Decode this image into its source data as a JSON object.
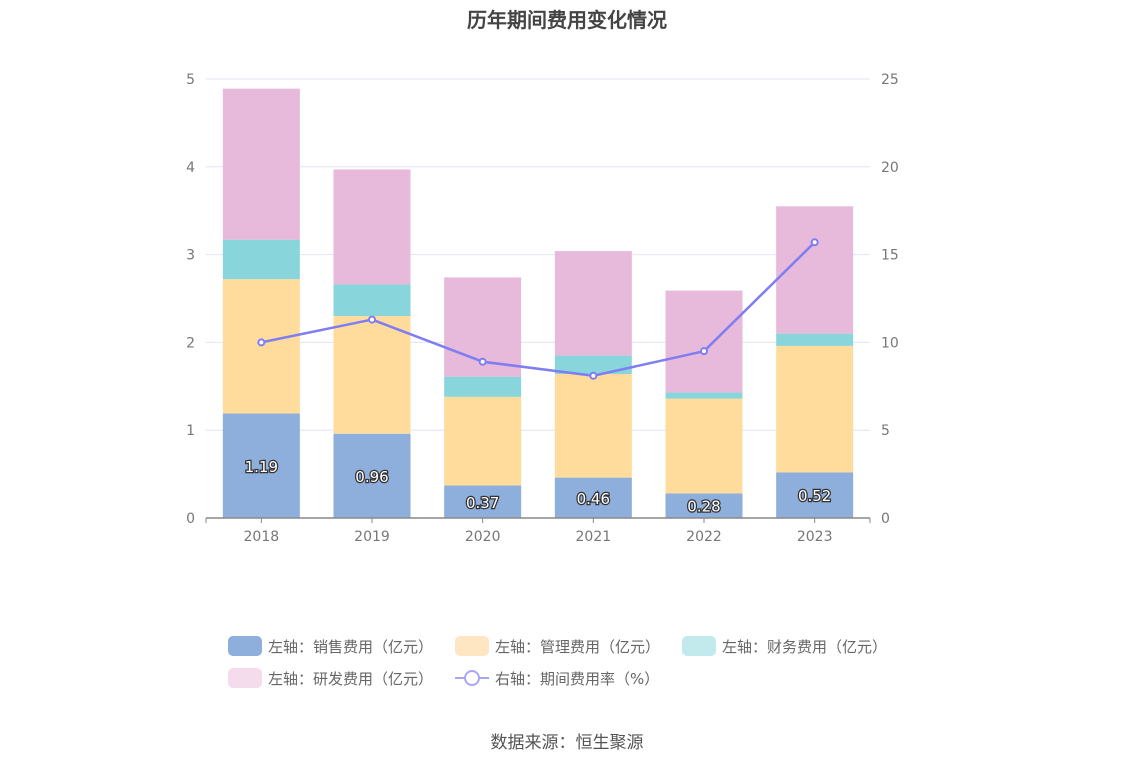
{
  "chart_data": {
    "type": "bar",
    "title": "历年期间费用变化情况",
    "categories": [
      "2018",
      "2019",
      "2020",
      "2021",
      "2022",
      "2023"
    ],
    "stacked": true,
    "series": [
      {
        "name": "左轴：销售费用（亿元）",
        "axis": "left",
        "type": "bar",
        "color": "#8eaedb",
        "values": [
          1.19,
          0.96,
          0.37,
          0.46,
          0.28,
          0.52
        ],
        "labels": [
          "1.19",
          "0.96",
          "0.37",
          "0.46",
          "0.28",
          "0.52"
        ]
      },
      {
        "name": "左轴：管理费用（亿元）",
        "axis": "left",
        "type": "bar",
        "color": "#ffdb9c",
        "values": [
          1.53,
          1.34,
          1.01,
          1.18,
          1.08,
          1.44
        ]
      },
      {
        "name": "左轴：财务费用（亿元）",
        "axis": "left",
        "type": "bar",
        "color": "#89d5dc",
        "values": [
          0.45,
          0.36,
          0.23,
          0.21,
          0.07,
          0.14
        ]
      },
      {
        "name": "左轴：研发费用（亿元）",
        "axis": "left",
        "type": "bar",
        "color": "#e7b9da",
        "values": [
          1.72,
          1.31,
          1.13,
          1.19,
          1.16,
          1.45
        ]
      },
      {
        "name": "右轴：期间费用率（%）",
        "axis": "right",
        "type": "line",
        "color": "#7e7ef2",
        "values": [
          10.0,
          11.3,
          8.9,
          8.1,
          9.5,
          15.7
        ]
      }
    ],
    "y_left": {
      "min": 0,
      "max": 5,
      "ticks": [
        "0",
        "1",
        "2",
        "3",
        "4",
        "5"
      ]
    },
    "y_right": {
      "min": 0,
      "max": 25,
      "ticks": [
        "0",
        "5",
        "10",
        "15",
        "20",
        "25"
      ]
    },
    "grid": true,
    "legend_position": "bottom",
    "source": "数据来源：恒生聚源"
  },
  "legend_colors": {
    "销售费用": "#8eaedb",
    "管理费用": "#ffe6c2",
    "财务费用": "#c2e9ec",
    "研发费用": "#f5dcec"
  }
}
